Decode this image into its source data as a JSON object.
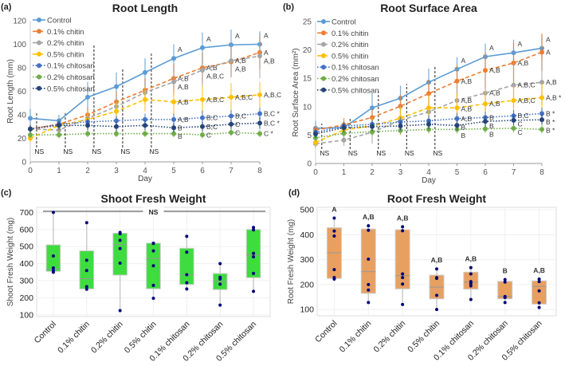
{
  "chart_data": [
    {
      "panel": "(a)",
      "type": "line",
      "title": "Root Length",
      "xlabel": "Day",
      "ylabel": "Root Length (mm)",
      "xlim": [
        0,
        8
      ],
      "ylim": [
        0,
        120
      ],
      "yticks": [
        0,
        20,
        40,
        60,
        80,
        100,
        120
      ],
      "x": [
        0,
        1,
        2,
        3,
        4,
        5,
        6,
        7,
        8
      ],
      "legend": "top-left",
      "ns_label": "NS",
      "ns_days": [
        0,
        1,
        2,
        3,
        4
      ],
      "series": [
        {
          "name": "Control",
          "color": "#5b9bd5",
          "style": "solid",
          "values": [
            37,
            35,
            55,
            64,
            76,
            88,
            97,
            99.5,
            100
          ],
          "err": [
            8,
            5,
            13,
            12,
            12,
            12,
            13,
            13,
            11
          ],
          "letters": {
            "5": "A",
            "6": "A",
            "7": "A",
            "8": "A"
          }
        },
        {
          "name": "0.1% chitin",
          "color": "#ed7d31",
          "style": "dashed",
          "values": [
            28,
            32,
            40,
            51,
            61,
            71,
            80,
            85,
            93
          ],
          "err": [
            4,
            4,
            6,
            9,
            10,
            12,
            13,
            13,
            14
          ],
          "letters": {
            "5": "A,B",
            "6": "A,B",
            "7": "A,B",
            "8": "A"
          }
        },
        {
          "name": "0.2% chitin",
          "color": "#a5a5a5",
          "style": "dashed",
          "values": [
            28,
            27,
            37,
            47,
            59,
            68,
            78,
            86,
            90
          ],
          "err": [
            4,
            5,
            7,
            9,
            10,
            12,
            14,
            14,
            19
          ],
          "letters": {
            "5": "A,B",
            "6": "A,B,C",
            "7": "A,B",
            "8": "A,B"
          }
        },
        {
          "name": "0.5% chitin",
          "color": "#ffc000",
          "style": "dashed",
          "values": [
            20,
            31,
            36,
            43,
            53,
            51,
            53,
            55,
            57
          ],
          "err": [
            3,
            5,
            8,
            8,
            10,
            11,
            12,
            12,
            11
          ],
          "letters": {
            "5": "A,B",
            "6": "A,B,C",
            "7": "A,B,C",
            "8": "A,B,C"
          }
        },
        {
          "name": "0.1% chitosan",
          "color": "#4472c4",
          "style": "dotted",
          "values": [
            28,
            32,
            34,
            35,
            36,
            36,
            37.5,
            39,
            41
          ],
          "err": [
            3,
            4,
            4,
            4,
            5,
            5,
            6,
            5,
            5
          ],
          "letters": {
            "5": "A,B",
            "6": "B,C",
            "7": "B,C",
            "8": "B,C *"
          }
        },
        {
          "name": "0.2% chitosan",
          "color": "#70ad47",
          "style": "dotted",
          "values": [
            23,
            23,
            24,
            24,
            24,
            24,
            23,
            25,
            24
          ],
          "err": [
            3,
            3,
            3,
            3,
            3,
            3,
            3,
            3,
            3
          ],
          "letters": {
            "5": "B",
            "6": "C",
            "7": "C",
            "8": "C *"
          }
        },
        {
          "name": "0.5% chitosan",
          "color": "#264478",
          "style": "dotted",
          "values": [
            28,
            31,
            31,
            30,
            31,
            29,
            30,
            32,
            33
          ],
          "err": [
            3,
            4,
            4,
            4,
            4,
            4,
            4,
            4,
            5
          ],
          "letters": {
            "5": "B",
            "6": "B,C",
            "7": "C",
            "8": "B,C *"
          }
        }
      ]
    },
    {
      "panel": "(b)",
      "type": "line",
      "title": "Root Surface Area",
      "xlabel": "Day",
      "ylabel": "Root Surface Area (mm²)",
      "xlim": [
        0,
        8
      ],
      "ylim": [
        0,
        25
      ],
      "yticks": [
        0,
        5,
        10,
        15,
        20,
        25
      ],
      "x": [
        0,
        1,
        2,
        3,
        4,
        5,
        6,
        7,
        8
      ],
      "legend": "top-left",
      "ns_label": "NS",
      "ns_days": [
        0,
        1,
        2,
        3,
        4
      ],
      "series": [
        {
          "name": "Control",
          "color": "#5b9bd5",
          "style": "solid",
          "values": [
            6.2,
            6.3,
            9.8,
            11.5,
            14.3,
            16.6,
            18.8,
            19.5,
            20.3
          ],
          "err": [
            1.3,
            1,
            2.6,
            2.2,
            2.4,
            2.1,
            2.3,
            2.3,
            2.3
          ],
          "letters": {
            "5": "A",
            "6": "A",
            "7": "A",
            "8": "A"
          }
        },
        {
          "name": "0.1% chitin",
          "color": "#ed7d31",
          "style": "dashed",
          "values": [
            5.9,
            6.8,
            8.1,
            10.1,
            12.3,
            14.5,
            16.4,
            17.7,
            19.6
          ],
          "err": [
            0.8,
            1.2,
            1.5,
            2,
            2.5,
            3,
            3.2,
            3.5,
            3.3
          ],
          "letters": {
            "5": "A,B",
            "6": "A,B",
            "7": "A,B",
            "8": "A"
          }
        },
        {
          "name": "0.2% chitin",
          "color": "#a5a5a5",
          "style": "dashed",
          "values": [
            3.5,
            4.1,
            5.5,
            7.6,
            9.1,
            11.1,
            12.4,
            13.8,
            14.3
          ],
          "err": [
            0.8,
            1,
            2,
            2.5,
            2.8,
            3,
            3.5,
            4,
            4
          ],
          "letters": {
            "5": "A,B",
            "6": "A,B",
            "7": "A,B,C",
            "8": "A,B"
          }
        },
        {
          "name": "0.5% chitin",
          "color": "#ffc000",
          "style": "dashed",
          "values": [
            3.7,
            5.9,
            6.6,
            8.0,
            9.8,
            9.8,
            10.5,
            11.1,
            11.6
          ],
          "err": [
            0.6,
            1,
            1.5,
            2,
            2.5,
            2.5,
            2.5,
            2.5,
            2.5
          ],
          "letters": {
            "5": "A,B",
            "6": "A,B",
            "7": "A,B,C",
            "8": "A,B *"
          }
        },
        {
          "name": "0.1% chitosan",
          "color": "#4472c4",
          "style": "dotted",
          "values": [
            5.5,
            6.6,
            6.9,
            7.3,
            7.5,
            7.9,
            8.1,
            8.4,
            8.8
          ],
          "err": [
            0.7,
            0.8,
            0.8,
            0.9,
            1,
            1,
            1,
            1,
            1
          ],
          "letters": {
            "5": "A,B",
            "6": "B",
            "7": "B,C",
            "8": "B *"
          }
        },
        {
          "name": "0.2% chitosan",
          "color": "#70ad47",
          "style": "dotted",
          "values": [
            4.5,
            5.3,
            5.6,
            5.8,
            6.0,
            6.0,
            6.1,
            6.2,
            6.0
          ],
          "err": [
            0.6,
            0.7,
            0.7,
            0.7,
            0.7,
            0.7,
            0.7,
            0.7,
            0.7
          ],
          "letters": {
            "5": "B",
            "6": "B",
            "7": "C",
            "8": "B *"
          }
        },
        {
          "name": "0.5% chitosan",
          "color": "#264478",
          "style": "dotted",
          "values": [
            5.2,
            6.3,
            6.5,
            6.6,
            6.9,
            6.7,
            7.4,
            7.6,
            7.7
          ],
          "err": [
            0.7,
            0.8,
            0.8,
            0.8,
            0.9,
            0.9,
            0.9,
            0.9,
            0.9
          ],
          "letters": {
            "5": "B",
            "6": "B",
            "7": "C",
            "8": "B *"
          }
        }
      ]
    },
    {
      "panel": "(c)",
      "type": "box",
      "title": "Shoot Fresh Weight",
      "ylabel": "Shoot Fresh Weight (mg)",
      "ylim": [
        90,
        730
      ],
      "yticks": [
        100,
        200,
        300,
        400,
        500,
        600,
        700
      ],
      "box_color": "#3fdc3f",
      "annotation": "NS",
      "categories": [
        "Control",
        "0.1% chitin",
        "0.2% chitin",
        "0.5% chitin",
        "0.1% chitosan",
        "0.2% chitosan",
        "0.5% chitosan"
      ],
      "boxes": [
        {
          "q1": 355,
          "median": 368,
          "q3": 510,
          "points": [
            700,
            445,
            375,
            360,
            350
          ]
        },
        {
          "q1": 252,
          "median": 312,
          "q3": 475,
          "points": [
            640,
            420,
            360,
            265,
            250
          ]
        },
        {
          "q1": 333,
          "median": 512,
          "q3": 578,
          "points": [
            583,
            575,
            537,
            488,
            403,
            125
          ]
        },
        {
          "q1": 253,
          "median": 430,
          "q3": 520,
          "points": [
            520,
            518,
            475,
            388,
            273,
            197
          ]
        },
        {
          "q1": 278,
          "median": 335,
          "q3": 490,
          "points": [
            560,
            467,
            335,
            288,
            252
          ]
        },
        {
          "q1": 248,
          "median": 296,
          "q3": 342,
          "points": [
            400,
            320,
            310,
            280,
            157
          ]
        },
        {
          "q1": 318,
          "median": 450,
          "q3": 600,
          "points": [
            612,
            598,
            460,
            440,
            343,
            238
          ]
        }
      ]
    },
    {
      "panel": "(d)",
      "type": "box",
      "title": "Root Fresh Weight",
      "ylabel": "Root Fresh Weight (mg)",
      "ylim": [
        75,
        510
      ],
      "yticks": [
        100,
        200,
        300,
        400,
        500
      ],
      "box_color": "#e8a060",
      "categories": [
        "Control",
        "0.1% chitin",
        "0.2% chitin",
        "0.5% chitin",
        "0.1% chitosan",
        "0.2% chitosan",
        "0.5% chitosan"
      ],
      "boxes": [
        {
          "q1": 225,
          "median": 328,
          "q3": 428,
          "points": [
            467,
            415,
            395,
            260,
            228,
            222
          ],
          "letter": "A"
        },
        {
          "q1": 165,
          "median": 252,
          "q3": 423,
          "points": [
            436,
            418,
            302,
            200,
            178,
            128
          ],
          "letter": "A,B"
        },
        {
          "q1": 183,
          "median": 236,
          "q3": 420,
          "points": [
            432,
            416,
            243,
            228,
            202,
            120
          ],
          "letter": "A,B"
        },
        {
          "q1": 143,
          "median": 190,
          "q3": 238,
          "points": [
            263,
            228,
            225,
            157,
            100
          ],
          "letter": "A,B"
        },
        {
          "q1": 182,
          "median": 210,
          "q3": 250,
          "points": [
            268,
            243,
            212,
            205,
            195,
            140
          ],
          "letter": "A,B"
        },
        {
          "q1": 143,
          "median": 152,
          "q3": 213,
          "points": [
            220,
            210,
            152,
            148,
            128
          ],
          "letter": "B"
        },
        {
          "q1": 122,
          "median": 193,
          "q3": 215,
          "points": [
            222,
            212,
            175,
            127,
            108
          ],
          "letter": "A,B"
        }
      ]
    }
  ]
}
